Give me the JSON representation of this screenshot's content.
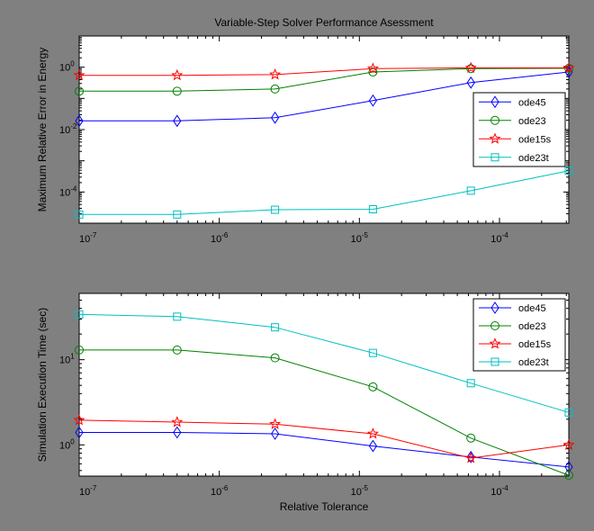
{
  "figure": {
    "background": "#808080"
  },
  "chart_data": [
    {
      "type": "line",
      "title": "Variable-Step Solver Performance Asessment",
      "xlabel": "",
      "ylabel": "Maximum Relative Error in Energy",
      "xscale": "log",
      "yscale": "log",
      "xlim": [
        1e-07,
        0.0003125
      ],
      "ylim": [
        1e-05,
        10
      ],
      "x_tick_labels": [
        {
          "base": "10",
          "exp": "-7",
          "value": 1e-07
        },
        {
          "base": "10",
          "exp": "-6",
          "value": 1e-06
        },
        {
          "base": "10",
          "exp": "-5",
          "value": 1e-05
        },
        {
          "base": "10",
          "exp": "-4",
          "value": 0.0001
        }
      ],
      "y_tick_labels": [
        {
          "base": "10",
          "exp": "-4",
          "value": 0.0001
        },
        {
          "base": "10",
          "exp": "-2",
          "value": 0.01
        },
        {
          "base": "10",
          "exp": "0",
          "value": 1
        }
      ],
      "x": [
        1e-07,
        5e-07,
        2.5e-06,
        1.25e-05,
        6.25e-05,
        0.0003125
      ],
      "series": [
        {
          "name": "ode45",
          "color": "#0000ff",
          "marker": "diamond",
          "values": [
            0.019,
            0.019,
            0.024,
            0.085,
            0.32,
            0.7
          ]
        },
        {
          "name": "ode23",
          "color": "#008000",
          "marker": "circle",
          "values": [
            0.17,
            0.17,
            0.2,
            0.7,
            0.9,
            0.92
          ]
        },
        {
          "name": "ode15s",
          "color": "#ff0000",
          "marker": "star",
          "values": [
            0.55,
            0.55,
            0.58,
            0.9,
            0.95,
            0.95
          ]
        },
        {
          "name": "ode23t",
          "color": "#00bfbf",
          "marker": "square",
          "values": [
            1.9e-05,
            1.9e-05,
            2.7e-05,
            2.8e-05,
            0.00011,
            0.00048
          ]
        }
      ],
      "legend": "right",
      "grid": false
    },
    {
      "type": "line",
      "title": "",
      "xlabel": "Relative Tolerance",
      "ylabel": "Simulation Execution Time (sec)",
      "xscale": "log",
      "yscale": "log",
      "xlim": [
        1e-07,
        0.0003125
      ],
      "ylim": [
        0.43,
        60
      ],
      "x_tick_labels": [
        {
          "base": "10",
          "exp": "-7",
          "value": 1e-07
        },
        {
          "base": "10",
          "exp": "-6",
          "value": 1e-06
        },
        {
          "base": "10",
          "exp": "-5",
          "value": 1e-05
        },
        {
          "base": "10",
          "exp": "-4",
          "value": 0.0001
        }
      ],
      "y_tick_labels": [
        {
          "base": "10",
          "exp": "0",
          "value": 1
        },
        {
          "base": "10",
          "exp": "1",
          "value": 10
        }
      ],
      "x": [
        1e-07,
        5e-07,
        2.5e-06,
        1.25e-05,
        6.25e-05,
        0.0003125
      ],
      "series": [
        {
          "name": "ode45",
          "color": "#0000ff",
          "marker": "diamond",
          "values": [
            1.4,
            1.4,
            1.35,
            0.97,
            0.72,
            0.55
          ]
        },
        {
          "name": "ode23",
          "color": "#008000",
          "marker": "circle",
          "values": [
            13,
            13,
            10.5,
            4.8,
            1.2,
            0.44
          ]
        },
        {
          "name": "ode15s",
          "color": "#ff0000",
          "marker": "star",
          "values": [
            1.95,
            1.85,
            1.75,
            1.35,
            0.7,
            1.0
          ]
        },
        {
          "name": "ode23t",
          "color": "#00bfbf",
          "marker": "square",
          "values": [
            34,
            32,
            24,
            12,
            5.3,
            2.4
          ]
        }
      ],
      "legend": "top-right",
      "grid": false
    }
  ]
}
